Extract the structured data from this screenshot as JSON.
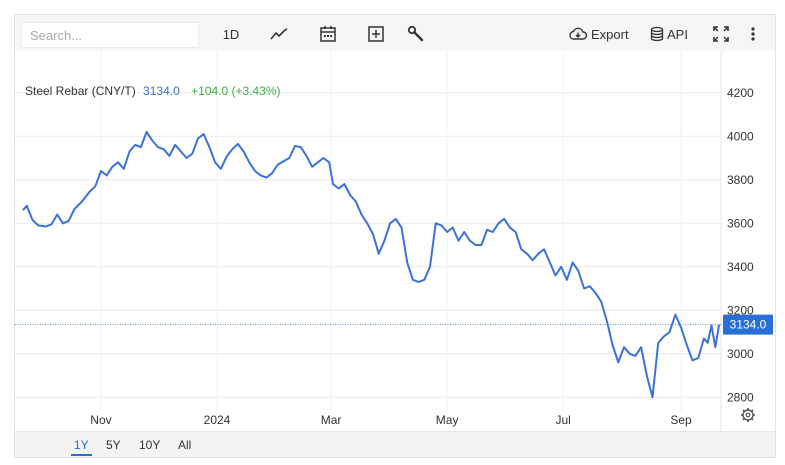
{
  "toolbar": {
    "search_placeholder": "Search...",
    "interval_label": "1D",
    "export_label": "Export",
    "api_label": "API",
    "icons": [
      "line-chart-icon",
      "calendar-icon",
      "add-box-icon",
      "wrench-icon",
      "cloud-download-icon",
      "database-icon",
      "fullscreen-icon",
      "more-vert-icon"
    ]
  },
  "legend": {
    "name": "Steel Rebar (CNY/T)",
    "price": "3134.0",
    "change": "+104.0 (+3.43%)"
  },
  "price_tag": "3134.0",
  "ranges": [
    {
      "label": "1Y",
      "active": true
    },
    {
      "label": "5Y",
      "active": false
    },
    {
      "label": "10Y",
      "active": false
    },
    {
      "label": "All",
      "active": false
    }
  ],
  "colors": {
    "line": "#3a72d8",
    "up": "#3cb043",
    "accent": "#2a6fd6"
  },
  "chart_data": {
    "type": "line",
    "title": "Steel Rebar (CNY/T)",
    "ylim": [
      2700,
      4300
    ],
    "y_ticks": [
      2800,
      3000,
      3200,
      3400,
      3600,
      3800,
      4000,
      4200
    ],
    "x_ticks": [
      {
        "label": "Nov",
        "x": "2023-11-01"
      },
      {
        "label": "2024",
        "x": "2024-01-01"
      },
      {
        "label": "Mar",
        "x": "2024-03-01"
      },
      {
        "label": "May",
        "x": "2024-05-01"
      },
      {
        "label": "Jul",
        "x": "2024-07-01"
      },
      {
        "label": "Sep",
        "x": "2024-09-01"
      }
    ],
    "xlim": [
      "2023-09-21",
      "2024-09-22"
    ],
    "grid": true,
    "last_value": 3134.0,
    "series": [
      {
        "name": "Steel Rebar (CNY/T)",
        "points": [
          [
            "2023-09-21",
            3660
          ],
          [
            "2023-09-23",
            3680
          ],
          [
            "2023-09-26",
            3615
          ],
          [
            "2023-09-29",
            3590
          ],
          [
            "2023-10-03",
            3585
          ],
          [
            "2023-10-06",
            3595
          ],
          [
            "2023-10-09",
            3640
          ],
          [
            "2023-10-12",
            3600
          ],
          [
            "2023-10-15",
            3610
          ],
          [
            "2023-10-18",
            3665
          ],
          [
            "2023-10-22",
            3700
          ],
          [
            "2023-10-26",
            3745
          ],
          [
            "2023-10-29",
            3770
          ],
          [
            "2023-11-01",
            3840
          ],
          [
            "2023-11-04",
            3820
          ],
          [
            "2023-11-07",
            3860
          ],
          [
            "2023-11-10",
            3880
          ],
          [
            "2023-11-13",
            3850
          ],
          [
            "2023-11-16",
            3930
          ],
          [
            "2023-11-19",
            3960
          ],
          [
            "2023-11-22",
            3950
          ],
          [
            "2023-11-25",
            4020
          ],
          [
            "2023-11-28",
            3980
          ],
          [
            "2023-12-01",
            3950
          ],
          [
            "2023-12-04",
            3940
          ],
          [
            "2023-12-07",
            3910
          ],
          [
            "2023-12-10",
            3960
          ],
          [
            "2023-12-13",
            3930
          ],
          [
            "2023-12-16",
            3900
          ],
          [
            "2023-12-19",
            3920
          ],
          [
            "2023-12-22",
            3990
          ],
          [
            "2023-12-25",
            4010
          ],
          [
            "2023-12-28",
            3950
          ],
          [
            "2023-12-31",
            3880
          ],
          [
            "2024-01-03",
            3850
          ],
          [
            "2024-01-06",
            3905
          ],
          [
            "2024-01-09",
            3940
          ],
          [
            "2024-01-12",
            3965
          ],
          [
            "2024-01-15",
            3930
          ],
          [
            "2024-01-18",
            3880
          ],
          [
            "2024-01-21",
            3840
          ],
          [
            "2024-01-24",
            3820
          ],
          [
            "2024-01-27",
            3810
          ],
          [
            "2024-01-30",
            3830
          ],
          [
            "2024-02-02",
            3870
          ],
          [
            "2024-02-05",
            3885
          ],
          [
            "2024-02-08",
            3900
          ],
          [
            "2024-02-11",
            3955
          ],
          [
            "2024-02-14",
            3950
          ],
          [
            "2024-02-17",
            3910
          ],
          [
            "2024-02-20",
            3860
          ],
          [
            "2024-02-23",
            3880
          ],
          [
            "2024-02-26",
            3900
          ],
          [
            "2024-02-29",
            3880
          ],
          [
            "2024-03-02",
            3780
          ],
          [
            "2024-03-05",
            3760
          ],
          [
            "2024-03-08",
            3780
          ],
          [
            "2024-03-11",
            3730
          ],
          [
            "2024-03-14",
            3700
          ],
          [
            "2024-03-17",
            3640
          ],
          [
            "2024-03-20",
            3600
          ],
          [
            "2024-03-23",
            3550
          ],
          [
            "2024-03-26",
            3460
          ],
          [
            "2024-03-29",
            3520
          ],
          [
            "2024-04-01",
            3600
          ],
          [
            "2024-04-04",
            3620
          ],
          [
            "2024-04-07",
            3580
          ],
          [
            "2024-04-10",
            3420
          ],
          [
            "2024-04-13",
            3340
          ],
          [
            "2024-04-16",
            3330
          ],
          [
            "2024-04-19",
            3340
          ],
          [
            "2024-04-22",
            3400
          ],
          [
            "2024-04-25",
            3600
          ],
          [
            "2024-04-28",
            3590
          ],
          [
            "2024-05-01",
            3560
          ],
          [
            "2024-05-04",
            3580
          ],
          [
            "2024-05-07",
            3520
          ],
          [
            "2024-05-10",
            3560
          ],
          [
            "2024-05-13",
            3520
          ],
          [
            "2024-05-16",
            3500
          ],
          [
            "2024-05-19",
            3500
          ],
          [
            "2024-05-22",
            3570
          ],
          [
            "2024-05-25",
            3560
          ],
          [
            "2024-05-28",
            3600
          ],
          [
            "2024-05-31",
            3620
          ],
          [
            "2024-06-03",
            3580
          ],
          [
            "2024-06-06",
            3560
          ],
          [
            "2024-06-09",
            3480
          ],
          [
            "2024-06-12",
            3460
          ],
          [
            "2024-06-15",
            3430
          ],
          [
            "2024-06-18",
            3460
          ],
          [
            "2024-06-21",
            3480
          ],
          [
            "2024-06-24",
            3420
          ],
          [
            "2024-06-27",
            3360
          ],
          [
            "2024-06-30",
            3400
          ],
          [
            "2024-07-03",
            3340
          ],
          [
            "2024-07-06",
            3420
          ],
          [
            "2024-07-09",
            3380
          ],
          [
            "2024-07-12",
            3300
          ],
          [
            "2024-07-15",
            3310
          ],
          [
            "2024-07-18",
            3280
          ],
          [
            "2024-07-21",
            3240
          ],
          [
            "2024-07-24",
            3150
          ],
          [
            "2024-07-27",
            3040
          ],
          [
            "2024-07-30",
            2960
          ],
          [
            "2024-08-02",
            3030
          ],
          [
            "2024-08-05",
            3000
          ],
          [
            "2024-08-08",
            2990
          ],
          [
            "2024-08-11",
            3030
          ],
          [
            "2024-08-14",
            2900
          ],
          [
            "2024-08-17",
            2800
          ],
          [
            "2024-08-20",
            3050
          ],
          [
            "2024-08-23",
            3080
          ],
          [
            "2024-08-26",
            3100
          ],
          [
            "2024-08-29",
            3180
          ],
          [
            "2024-09-01",
            3120
          ],
          [
            "2024-09-04",
            3040
          ],
          [
            "2024-09-07",
            2970
          ],
          [
            "2024-09-10",
            2980
          ],
          [
            "2024-09-13",
            3070
          ],
          [
            "2024-09-15",
            3050
          ],
          [
            "2024-09-17",
            3130
          ],
          [
            "2024-09-19",
            3030
          ],
          [
            "2024-09-21",
            3134
          ]
        ]
      }
    ]
  }
}
